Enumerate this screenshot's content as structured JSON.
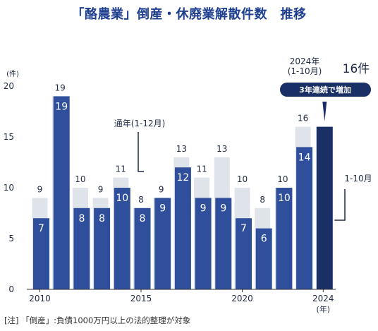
{
  "title": "「酪農業」倒産・休廃業解散件数　推移",
  "footnote": "[注] 「倒産」:負債1000万円以上の法的整理が対象",
  "colors": {
    "full_year": "#dfe3ea",
    "jan_oct": "#2f4f9c",
    "highlight": "#1a2f66",
    "text": "#1f2a44"
  },
  "annotations": {
    "full_year_label": "通年(1-12月)",
    "jan_oct_label": "1-10月",
    "highlight_line1": "2024年",
    "highlight_line2": "(1-10月)",
    "highlight_value": "16件",
    "badge": "3年連続で増加"
  },
  "chart_data": {
    "type": "bar",
    "y_unit": "(件)",
    "x_unit": "(年)",
    "ylim": [
      0,
      20
    ],
    "yticks": [
      0,
      5,
      10,
      15,
      20
    ],
    "xtick_labels": [
      "2010",
      "2015",
      "2020",
      "2024"
    ],
    "xtick_years": [
      2010,
      2015,
      2020,
      2024
    ],
    "years": [
      2010,
      2011,
      2012,
      2013,
      2014,
      2015,
      2016,
      2017,
      2018,
      2019,
      2020,
      2021,
      2022,
      2023,
      2024
    ],
    "series": [
      {
        "name": "通年(1-12月)",
        "values": [
          9,
          19,
          10,
          9,
          11,
          8,
          9,
          13,
          11,
          13,
          10,
          8,
          10,
          16,
          null
        ]
      },
      {
        "name": "1-10月",
        "values": [
          7,
          19,
          8,
          8,
          10,
          8,
          9,
          12,
          9,
          9,
          7,
          6,
          10,
          14,
          16
        ]
      }
    ]
  }
}
